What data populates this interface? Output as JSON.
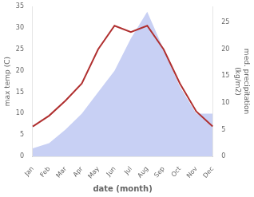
{
  "chart_data": {
    "type": "line",
    "categories": [
      "Jan",
      "Feb",
      "Mar",
      "Apr",
      "May",
      "Jun",
      "Jul",
      "Aug",
      "Sep",
      "Oct",
      "Nov",
      "Dec"
    ],
    "series": [
      {
        "type": "area",
        "color": "#c8d0f4",
        "axis": "y2",
        "values": [
          1.5,
          2.5,
          5,
          8,
          12,
          16,
          22,
          27,
          20,
          13,
          8,
          8
        ]
      },
      {
        "type": "line",
        "color": "#b03030",
        "values": [
          7,
          9.5,
          13,
          17,
          25,
          30.5,
          29,
          30.5,
          25,
          17,
          10.5,
          7
        ]
      }
    ],
    "xlabel": "date (month)",
    "ylabel": "max temp (C)",
    "y2label": "med. precipitation\n(kg/m2)",
    "ylim": [
      0,
      35
    ],
    "yticks": [
      0,
      5,
      10,
      15,
      20,
      25,
      30,
      35
    ],
    "y2lim": [
      0,
      28
    ],
    "y2ticks": [
      0,
      5,
      10,
      15,
      20,
      25
    ],
    "grid": false
  }
}
